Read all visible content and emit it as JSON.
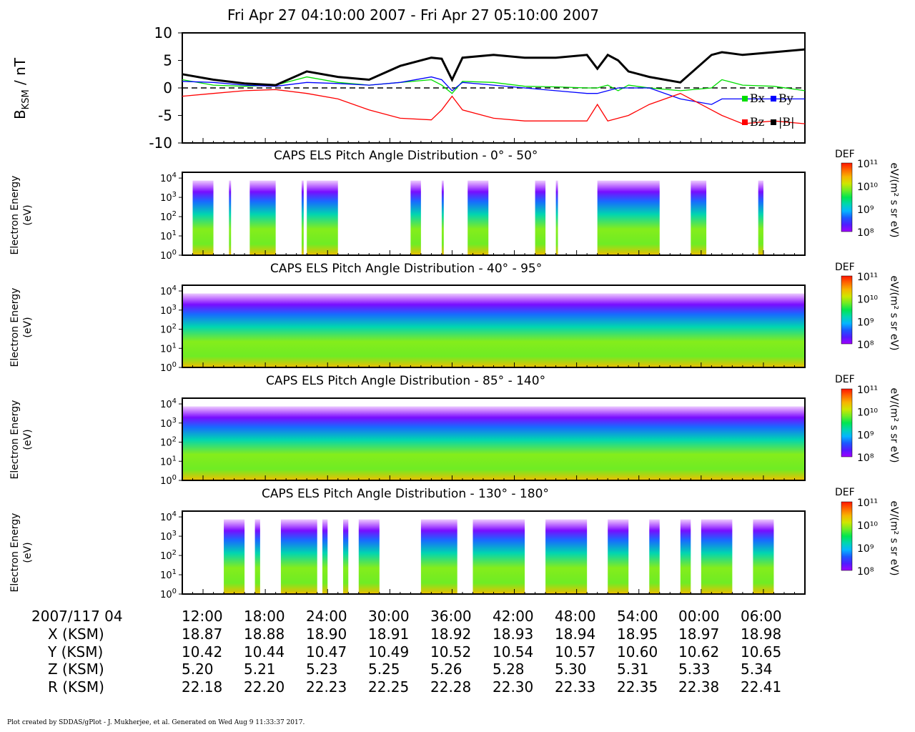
{
  "title": "Fri Apr 27 04:10:00 2007 - Fri Apr 27 05:10:00 2007",
  "footer": "Plot created by SDDAS/gPlot - J. Mukherjee, et al.  Generated on Wed Aug 9 11:33:37 2017.",
  "mag_panel": {
    "ylabel": "B",
    "ylabel_sub": "KSM",
    "ylabel_unit": " / nT",
    "legend": [
      "Bx",
      "By",
      "Bz",
      "|B|"
    ]
  },
  "spectrogram_panels": [
    {
      "title": "CAPS ELS Pitch Angle Distribution - 0° - 50°"
    },
    {
      "title": "CAPS ELS Pitch Angle Distribution - 40° - 95°"
    },
    {
      "title": "CAPS ELS Pitch Angle Distribution - 85° - 140°"
    },
    {
      "title": "CAPS ELS Pitch Angle Distribution - 130° - 180°"
    }
  ],
  "spec_ylabel": [
    "Electron Energy",
    "(eV)"
  ],
  "colorbar": {
    "title": "DEF",
    "unit": "eV/(m² s sr eV)",
    "ticks": [
      "10¹¹",
      "10¹⁰",
      "10⁹",
      "10⁸"
    ]
  },
  "colors": {
    "Bx": "#00dd00",
    "By": "#0000ff",
    "Bz": "#ff0000",
    "Btot": "#000000"
  },
  "ephemeris": {
    "date_label": "2007/117 04",
    "times": [
      "12:00",
      "18:00",
      "24:00",
      "30:00",
      "36:00",
      "42:00",
      "48:00",
      "54:00",
      "00:00",
      "06:00"
    ],
    "rows": [
      {
        "label": "X (KSM)",
        "values": [
          "18.87",
          "18.88",
          "18.90",
          "18.91",
          "18.92",
          "18.93",
          "18.94",
          "18.95",
          "18.97",
          "18.98"
        ]
      },
      {
        "label": "Y (KSM)",
        "values": [
          "10.42",
          "10.44",
          "10.47",
          "10.49",
          "10.52",
          "10.54",
          "10.57",
          "10.60",
          "10.62",
          "10.65"
        ]
      },
      {
        "label": "Z (KSM)",
        "values": [
          "5.20",
          "5.21",
          "5.23",
          "5.25",
          "5.26",
          "5.28",
          "5.30",
          "5.31",
          "5.33",
          "5.34"
        ]
      },
      {
        "label": "R (KSM)",
        "values": [
          "22.18",
          "22.20",
          "22.23",
          "22.25",
          "22.28",
          "22.30",
          "22.33",
          "22.35",
          "22.38",
          "22.41"
        ]
      }
    ]
  },
  "chart_data": [
    {
      "type": "line",
      "title": "",
      "ylabel": "BKSM / nT",
      "ylim": [
        -10,
        10
      ],
      "yticks": [
        10,
        5,
        0,
        -5,
        -10
      ],
      "x_minutes": [
        10,
        13,
        16,
        19,
        22,
        25,
        28,
        31,
        34,
        35,
        36,
        37,
        40,
        43,
        46,
        49,
        50,
        51,
        52,
        53,
        55,
        58,
        61,
        62,
        64,
        67,
        70
      ],
      "series": [
        {
          "name": "Bx",
          "values": [
            1.5,
            0.5,
            0.3,
            0.5,
            2,
            1,
            0.5,
            1,
            1.5,
            0.5,
            -1,
            1.2,
            1,
            0.3,
            0.2,
            0,
            0,
            0.5,
            -0.5,
            0.5,
            0,
            -0.5,
            0,
            1.5,
            0.5,
            0.3,
            -0.5
          ]
        },
        {
          "name": "By",
          "values": [
            1.2,
            1,
            0.5,
            0.3,
            1,
            0.8,
            0.5,
            1,
            2,
            1.5,
            -0.5,
            1,
            0.5,
            0,
            -0.5,
            -1,
            -1,
            -0.5,
            0,
            0,
            0,
            -2,
            -3,
            -2,
            -2,
            -2,
            -2
          ]
        },
        {
          "name": "Bz",
          "values": [
            -1.5,
            -1,
            -0.5,
            -0.3,
            -1,
            -2,
            -4,
            -5.5,
            -5.8,
            -4,
            -1.5,
            -4,
            -5.5,
            -6,
            -6,
            -6,
            -3,
            -6,
            -5.5,
            -5,
            -3,
            -1,
            -4,
            -5,
            -6.5,
            -6,
            -6.5
          ]
        },
        {
          "name": "|B|",
          "values": [
            2.5,
            1.5,
            0.8,
            0.5,
            3,
            2,
            1.5,
            4,
            5.5,
            5.3,
            1.5,
            5.5,
            6,
            5.5,
            5.5,
            6,
            3.5,
            6,
            5,
            3,
            2,
            1,
            6,
            6.5,
            6,
            6.5,
            7
          ]
        }
      ]
    },
    {
      "type": "heatmap",
      "title": "CAPS ELS Pitch Angle Distribution - 0° - 50°",
      "ylabel": "Electron Energy (eV)",
      "y_scale": "log",
      "ylim": [
        1,
        20000
      ],
      "color_scale": "log",
      "clim": [
        100000000.0,
        100000000000.0
      ],
      "coverage_minutes": [
        [
          11,
          13
        ],
        [
          14.5,
          14.7
        ],
        [
          16.5,
          19
        ],
        [
          21.5,
          21.7
        ],
        [
          22,
          25
        ],
        [
          32,
          33
        ],
        [
          35,
          35.2
        ],
        [
          37.5,
          39.5
        ],
        [
          44,
          45
        ],
        [
          46,
          46.2
        ],
        [
          50,
          56
        ],
        [
          59,
          60.5
        ],
        [
          65.5,
          66
        ]
      ]
    },
    {
      "type": "heatmap",
      "title": "CAPS ELS Pitch Angle Distribution - 40° - 95°",
      "ylabel": "Electron Energy (eV)",
      "y_scale": "log",
      "ylim": [
        1,
        20000
      ],
      "color_scale": "log",
      "clim": [
        100000000.0,
        100000000000.0
      ]
    },
    {
      "type": "heatmap",
      "title": "CAPS ELS Pitch Angle Distribution - 85° - 140°",
      "ylabel": "Electron Energy (eV)",
      "y_scale": "log",
      "ylim": [
        1,
        20000
      ],
      "color_scale": "log",
      "clim": [
        100000000.0,
        100000000000.0
      ]
    },
    {
      "type": "heatmap",
      "title": "CAPS ELS Pitch Angle Distribution - 130° - 180°",
      "ylabel": "Electron Energy (eV)",
      "y_scale": "log",
      "ylim": [
        1,
        20000
      ],
      "color_scale": "log",
      "clim": [
        100000000.0,
        100000000000.0
      ],
      "coverage_minutes": [
        [
          14,
          16
        ],
        [
          17,
          17.5
        ],
        [
          19.5,
          23
        ],
        [
          23.5,
          24
        ],
        [
          25.5,
          26
        ],
        [
          27,
          29
        ],
        [
          33,
          36.5
        ],
        [
          38,
          43
        ],
        [
          45,
          49
        ],
        [
          51,
          53
        ],
        [
          55,
          56
        ],
        [
          58,
          59
        ],
        [
          60,
          63
        ],
        [
          65,
          67
        ]
      ]
    }
  ]
}
